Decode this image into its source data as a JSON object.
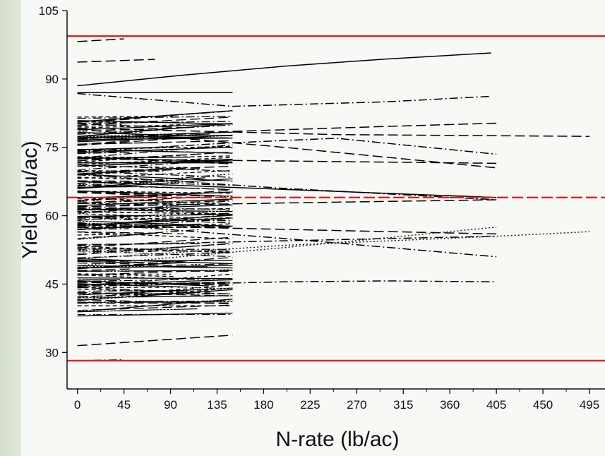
{
  "chart_data": {
    "type": "line",
    "xlabel": "N-rate (lb/ac)",
    "ylabel": "Yield (bu/ac)",
    "xlim": [
      -10,
      510
    ],
    "ylim": [
      22,
      105
    ],
    "x_ticks": [
      "0",
      "45",
      "90",
      "135",
      "180",
      "225",
      "270",
      "315",
      "360",
      "405",
      "450",
      "495"
    ],
    "x_tick_values": [
      0,
      45,
      90,
      135,
      180,
      225,
      270,
      315,
      360,
      405,
      450,
      495
    ],
    "y_ticks": [
      "30",
      "45",
      "60",
      "75",
      "90",
      "105"
    ],
    "y_tick_values": [
      30,
      45,
      60,
      75,
      90,
      105
    ],
    "reference_lines": [
      {
        "y": 99.4,
        "style": "solid",
        "color": "#e02020"
      },
      {
        "y": 64.0,
        "style": "dashed",
        "color": "#e02020"
      },
      {
        "y": 28.2,
        "style": "solid",
        "color": "#e02020"
      }
    ],
    "series": [
      {
        "dash": "solid",
        "x": [
          0,
          100,
          200,
          300,
          400
        ],
        "y": [
          88.5,
          90.8,
          92.8,
          94.4,
          95.7
        ]
      },
      {
        "dash": "solid",
        "x": [
          0,
          150
        ],
        "y": [
          87.0,
          87.0
        ]
      },
      {
        "dash": "longdash",
        "x": [
          0,
          45
        ],
        "y": [
          98.2,
          98.8
        ]
      },
      {
        "dash": "longdash",
        "x": [
          0,
          75
        ],
        "y": [
          93.7,
          94.3
        ]
      },
      {
        "dash": "dashdot",
        "x": [
          0,
          150,
          300,
          400
        ],
        "y": [
          86.8,
          84.0,
          85.0,
          86.2
        ]
      },
      {
        "dash": "longdash",
        "x": [
          0,
          150,
          300,
          405
        ],
        "y": [
          76.8,
          78.5,
          79.6,
          80.3
        ]
      },
      {
        "dash": "longdash",
        "x": [
          0,
          250,
          495
        ],
        "y": [
          79.2,
          77.8,
          77.4
        ]
      },
      {
        "dash": "longdash",
        "x": [
          0,
          200,
          405
        ],
        "y": [
          79.0,
          75.0,
          70.5
        ]
      },
      {
        "dash": "dashdot",
        "x": [
          0,
          150,
          250,
          405
        ],
        "y": [
          74.0,
          76.0,
          77.0,
          73.5
        ]
      },
      {
        "dash": "longdash",
        "x": [
          0,
          200,
          405
        ],
        "y": [
          72.5,
          72.0,
          71.5
        ]
      },
      {
        "dash": "dashdot",
        "x": [
          0,
          200,
          405
        ],
        "y": [
          69.0,
          66.0,
          63.5
        ]
      },
      {
        "dash": "solid",
        "x": [
          0,
          405
        ],
        "y": [
          67.5,
          64.0
        ]
      },
      {
        "dash": "longdash",
        "x": [
          0,
          200,
          405
        ],
        "y": [
          62.0,
          62.8,
          63.5
        ]
      },
      {
        "dash": "longdash",
        "x": [
          0,
          200,
          405
        ],
        "y": [
          58.0,
          57.0,
          56.0
        ]
      },
      {
        "dash": "dashdot",
        "x": [
          0,
          200,
          405
        ],
        "y": [
          53.5,
          54.5,
          55.5
        ]
      },
      {
        "dash": "dashdot",
        "x": [
          0,
          200,
          405
        ],
        "y": [
          58.5,
          55.0,
          51.0
        ]
      },
      {
        "dash": "dot",
        "x": [
          0,
          200,
          405,
          495
        ],
        "y": [
          50.5,
          53.5,
          55.5,
          56.5
        ]
      },
      {
        "dash": "dot",
        "x": [
          0,
          200,
          405
        ],
        "y": [
          49.0,
          53.0,
          57.5
        ]
      },
      {
        "dash": "dashdot",
        "x": [
          0,
          200,
          300,
          405
        ],
        "y": [
          44.5,
          45.5,
          45.7,
          45.5
        ]
      },
      {
        "dash": "longdash",
        "x": [
          0,
          150
        ],
        "y": [
          31.5,
          33.8
        ]
      },
      {
        "dash": "dashdot",
        "x": [
          0,
          45
        ],
        "y": [
          28.2,
          28.4
        ]
      }
    ]
  }
}
